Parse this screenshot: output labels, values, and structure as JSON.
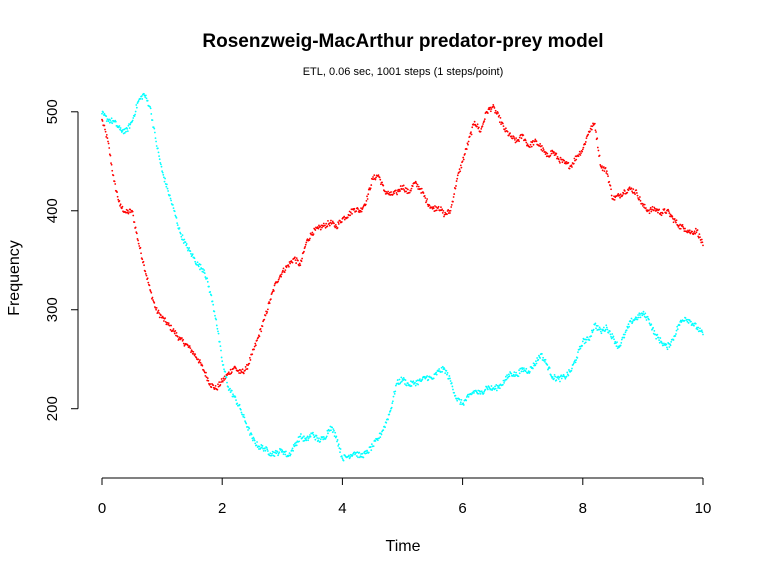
{
  "chart_data": {
    "type": "scatter",
    "title": "Rosenzweig-MacArthur predator-prey model",
    "subtitle": "ETL, 0.06 sec, 1001 steps (1 steps/point)",
    "xlabel": "Time",
    "ylabel": "Frequency",
    "xlim": [
      0,
      10
    ],
    "ylim": [
      130,
      520
    ],
    "x_ticks": [
      0,
      2,
      4,
      6,
      8,
      10
    ],
    "y_ticks": [
      200,
      300,
      400,
      500
    ],
    "grid": false,
    "legend": "none",
    "series": [
      {
        "color": "#ff0000",
        "points": [
          [
            0.0,
            492
          ],
          [
            0.1,
            470
          ],
          [
            0.2,
            430
          ],
          [
            0.3,
            405
          ],
          [
            0.4,
            398
          ],
          [
            0.5,
            400
          ],
          [
            0.6,
            370
          ],
          [
            0.7,
            345
          ],
          [
            0.8,
            320
          ],
          [
            0.9,
            300
          ],
          [
            1.0,
            292
          ],
          [
            1.1,
            285
          ],
          [
            1.2,
            278
          ],
          [
            1.3,
            270
          ],
          [
            1.4,
            265
          ],
          [
            1.5,
            258
          ],
          [
            1.6,
            250
          ],
          [
            1.7,
            238
          ],
          [
            1.8,
            225
          ],
          [
            1.9,
            220
          ],
          [
            2.0,
            228
          ],
          [
            2.1,
            235
          ],
          [
            2.2,
            242
          ],
          [
            2.3,
            236
          ],
          [
            2.4,
            240
          ],
          [
            2.5,
            255
          ],
          [
            2.6,
            272
          ],
          [
            2.7,
            290
          ],
          [
            2.8,
            310
          ],
          [
            2.9,
            328
          ],
          [
            3.0,
            338
          ],
          [
            3.1,
            345
          ],
          [
            3.2,
            352
          ],
          [
            3.3,
            345
          ],
          [
            3.4,
            368
          ],
          [
            3.5,
            378
          ],
          [
            3.6,
            382
          ],
          [
            3.7,
            385
          ],
          [
            3.8,
            388
          ],
          [
            3.9,
            384
          ],
          [
            4.0,
            392
          ],
          [
            4.1,
            396
          ],
          [
            4.2,
            402
          ],
          [
            4.3,
            400
          ],
          [
            4.4,
            410
          ],
          [
            4.5,
            432
          ],
          [
            4.6,
            436
          ],
          [
            4.7,
            420
          ],
          [
            4.8,
            416
          ],
          [
            4.9,
            418
          ],
          [
            5.0,
            425
          ],
          [
            5.1,
            418
          ],
          [
            5.2,
            428
          ],
          [
            5.3,
            422
          ],
          [
            5.4,
            410
          ],
          [
            5.5,
            402
          ],
          [
            5.6,
            404
          ],
          [
            5.7,
            396
          ],
          [
            5.8,
            400
          ],
          [
            5.9,
            430
          ],
          [
            6.0,
            450
          ],
          [
            6.1,
            470
          ],
          [
            6.2,
            490
          ],
          [
            6.3,
            480
          ],
          [
            6.4,
            500
          ],
          [
            6.5,
            505
          ],
          [
            6.6,
            495
          ],
          [
            6.7,
            482
          ],
          [
            6.8,
            475
          ],
          [
            6.9,
            470
          ],
          [
            7.0,
            476
          ],
          [
            7.1,
            465
          ],
          [
            7.2,
            470
          ],
          [
            7.3,
            465
          ],
          [
            7.4,
            455
          ],
          [
            7.5,
            460
          ],
          [
            7.6,
            452
          ],
          [
            7.7,
            448
          ],
          [
            7.8,
            445
          ],
          [
            7.9,
            455
          ],
          [
            8.0,
            462
          ],
          [
            8.1,
            480
          ],
          [
            8.2,
            488
          ],
          [
            8.3,
            445
          ],
          [
            8.4,
            440
          ],
          [
            8.5,
            412
          ],
          [
            8.6,
            415
          ],
          [
            8.7,
            420
          ],
          [
            8.8,
            422
          ],
          [
            8.9,
            418
          ],
          [
            9.0,
            405
          ],
          [
            9.1,
            400
          ],
          [
            9.2,
            402
          ],
          [
            9.3,
            398
          ],
          [
            9.4,
            400
          ],
          [
            9.5,
            392
          ],
          [
            9.6,
            385
          ],
          [
            9.7,
            382
          ],
          [
            9.8,
            378
          ],
          [
            9.9,
            380
          ],
          [
            10.0,
            365
          ]
        ]
      },
      {
        "color": "#00ffff",
        "points": [
          [
            0.0,
            498
          ],
          [
            0.1,
            492
          ],
          [
            0.2,
            490
          ],
          [
            0.3,
            482
          ],
          [
            0.4,
            480
          ],
          [
            0.5,
            490
          ],
          [
            0.6,
            510
          ],
          [
            0.7,
            518
          ],
          [
            0.8,
            505
          ],
          [
            0.9,
            470
          ],
          [
            1.0,
            440
          ],
          [
            1.1,
            420
          ],
          [
            1.2,
            400
          ],
          [
            1.3,
            378
          ],
          [
            1.4,
            365
          ],
          [
            1.5,
            355
          ],
          [
            1.6,
            345
          ],
          [
            1.7,
            340
          ],
          [
            1.8,
            318
          ],
          [
            1.9,
            290
          ],
          [
            2.0,
            248
          ],
          [
            2.1,
            222
          ],
          [
            2.2,
            212
          ],
          [
            2.3,
            200
          ],
          [
            2.4,
            185
          ],
          [
            2.5,
            170
          ],
          [
            2.6,
            162
          ],
          [
            2.7,
            160
          ],
          [
            2.8,
            155
          ],
          [
            2.9,
            155
          ],
          [
            3.0,
            158
          ],
          [
            3.1,
            152
          ],
          [
            3.2,
            162
          ],
          [
            3.3,
            172
          ],
          [
            3.4,
            168
          ],
          [
            3.5,
            175
          ],
          [
            3.6,
            168
          ],
          [
            3.7,
            170
          ],
          [
            3.8,
            182
          ],
          [
            3.9,
            172
          ],
          [
            4.0,
            150
          ],
          [
            4.1,
            152
          ],
          [
            4.2,
            156
          ],
          [
            4.3,
            152
          ],
          [
            4.4,
            155
          ],
          [
            4.5,
            162
          ],
          [
            4.6,
            170
          ],
          [
            4.7,
            182
          ],
          [
            4.8,
            198
          ],
          [
            4.9,
            225
          ],
          [
            5.0,
            230
          ],
          [
            5.1,
            224
          ],
          [
            5.2,
            226
          ],
          [
            5.3,
            228
          ],
          [
            5.4,
            232
          ],
          [
            5.5,
            230
          ],
          [
            5.6,
            238
          ],
          [
            5.7,
            240
          ],
          [
            5.8,
            228
          ],
          [
            5.9,
            210
          ],
          [
            6.0,
            205
          ],
          [
            6.1,
            212
          ],
          [
            6.2,
            218
          ],
          [
            6.3,
            215
          ],
          [
            6.4,
            222
          ],
          [
            6.5,
            220
          ],
          [
            6.6,
            222
          ],
          [
            6.7,
            228
          ],
          [
            6.8,
            236
          ],
          [
            6.9,
            234
          ],
          [
            7.0,
            240
          ],
          [
            7.1,
            238
          ],
          [
            7.2,
            245
          ],
          [
            7.3,
            255
          ],
          [
            7.4,
            245
          ],
          [
            7.5,
            232
          ],
          [
            7.6,
            230
          ],
          [
            7.7,
            232
          ],
          [
            7.8,
            238
          ],
          [
            7.9,
            252
          ],
          [
            8.0,
            268
          ],
          [
            8.1,
            270
          ],
          [
            8.2,
            285
          ],
          [
            8.3,
            278
          ],
          [
            8.4,
            282
          ],
          [
            8.5,
            272
          ],
          [
            8.6,
            262
          ],
          [
            8.7,
            275
          ],
          [
            8.8,
            288
          ],
          [
            8.9,
            292
          ],
          [
            9.0,
            296
          ],
          [
            9.1,
            290
          ],
          [
            9.2,
            275
          ],
          [
            9.3,
            268
          ],
          [
            9.4,
            262
          ],
          [
            9.5,
            270
          ],
          [
            9.6,
            285
          ],
          [
            9.7,
            292
          ],
          [
            9.8,
            288
          ],
          [
            9.9,
            282
          ],
          [
            10.0,
            275
          ]
        ]
      }
    ]
  }
}
